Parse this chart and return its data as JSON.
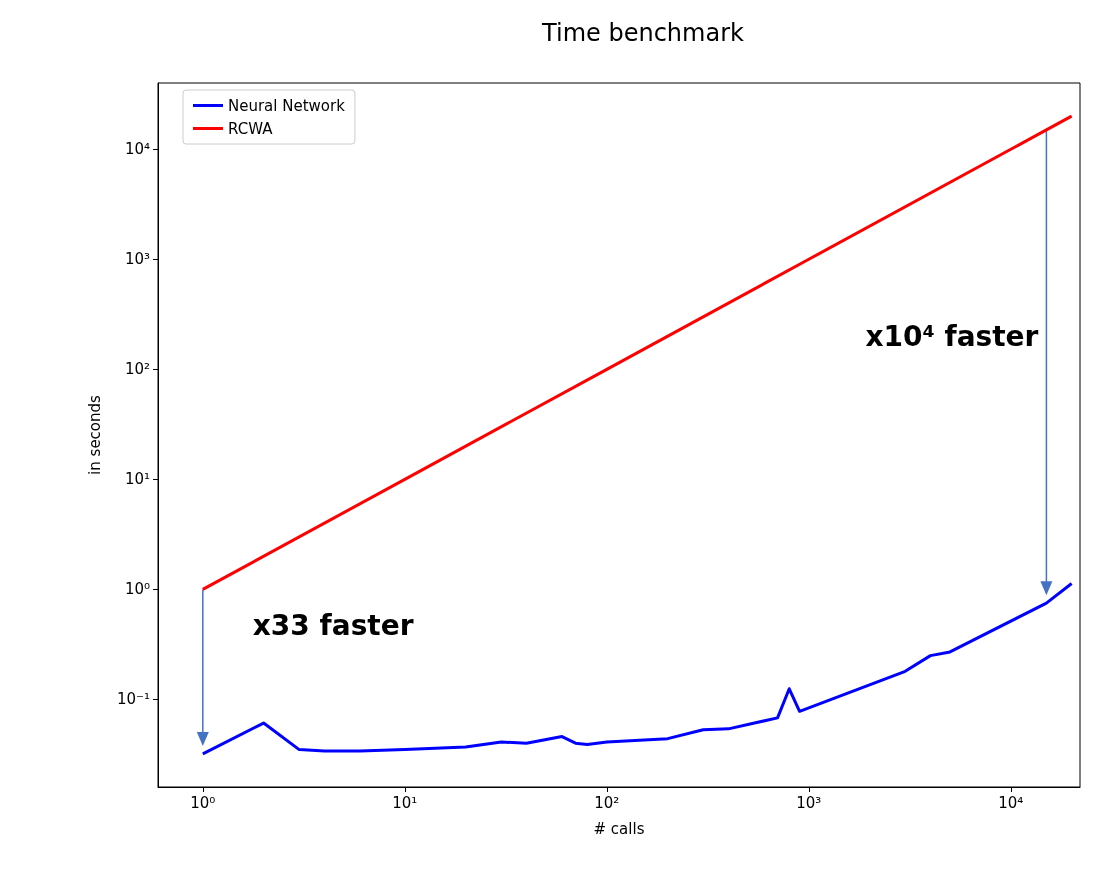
{
  "chart_data": {
    "type": "line",
    "title": "Time benchmark",
    "xlabel": "# calls",
    "ylabel": "in seconds",
    "log": "xy",
    "grid": false,
    "legend": "top left",
    "marker": "none",
    "line_style": "solid",
    "xlim": [
      0.6,
      22000
    ],
    "xticks": [
      {
        "value": 1,
        "label": "10⁰"
      },
      {
        "value": 10,
        "label": "10¹"
      },
      {
        "value": 100,
        "label": "10²"
      },
      {
        "value": 1000,
        "label": "10³"
      },
      {
        "value": 10000,
        "label": "10⁴"
      }
    ],
    "ylim": [
      0.016,
      40000
    ],
    "yticks": [
      {
        "value": 0.1,
        "label": "10⁻¹"
      },
      {
        "value": 1,
        "label": "10⁰"
      },
      {
        "value": 10,
        "label": "10¹"
      },
      {
        "value": 100,
        "label": "10²"
      },
      {
        "value": 1000,
        "label": "10³"
      },
      {
        "value": 10000,
        "label": "10⁴"
      }
    ],
    "series": [
      {
        "name": "Neural Network",
        "color": "#0000ff",
        "x": [
          1,
          2,
          3,
          4,
          5,
          6,
          10,
          20,
          30,
          40,
          60,
          70,
          80,
          100,
          200,
          300,
          400,
          700,
          800,
          900,
          3000,
          4000,
          5000,
          15000,
          20000
        ],
        "values": [
          0.032,
          0.061,
          0.035,
          0.034,
          0.034,
          0.034,
          0.035,
          0.037,
          0.041,
          0.04,
          0.046,
          0.04,
          0.039,
          0.041,
          0.044,
          0.053,
          0.054,
          0.068,
          0.125,
          0.078,
          0.18,
          0.25,
          0.27,
          0.75,
          1.13
        ]
      },
      {
        "name": "RCWA",
        "color": "#ff0000",
        "x": [
          1,
          10,
          100,
          1000,
          10000,
          15000,
          20000
        ],
        "values": [
          1,
          10,
          100,
          1000,
          10000,
          15000,
          20000
        ]
      }
    ],
    "annotations": [
      "x33 faster",
      "x10⁴ faster"
    ]
  }
}
